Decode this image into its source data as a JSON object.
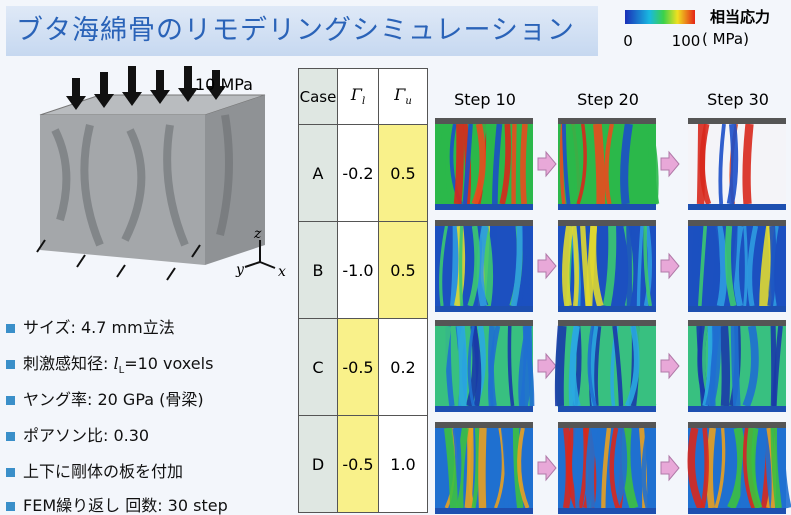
{
  "title": "ブタ海綿骨のリモデリングシミュレーション",
  "colorbar": {
    "label": "相当応力",
    "min": "0",
    "max": "100",
    "unit": "( MPa)"
  },
  "model": {
    "load": "10 MPa",
    "axes": {
      "z": "z",
      "y": "y",
      "x": "x"
    }
  },
  "bullets": [
    {
      "text": "サイズ: 4.7 mm立法"
    },
    {
      "text": "刺激感知径: ",
      "symbol": "l",
      "sub": "L",
      "tail": "=10 voxels"
    },
    {
      "text": "ヤング率: 20 GPa (骨梁)"
    },
    {
      "text": "ポアソン比: 0.30"
    },
    {
      "text": "上下に剛体の板を付加"
    },
    {
      "text": "FEM繰り返し 回数: 30 step"
    }
  ],
  "table": {
    "header": [
      "Case",
      "Γ",
      "Γ"
    ],
    "header_subs": [
      "l",
      "u"
    ],
    "rows": [
      [
        "A",
        "-0.2",
        "0.5"
      ],
      [
        "B",
        "-1.0",
        "0.5"
      ],
      [
        "C",
        "-0.5",
        "0.2"
      ],
      [
        "D",
        "-0.5",
        "1.0"
      ]
    ]
  },
  "steps": [
    "Step 10",
    "Step 20",
    "Step 30"
  ]
}
